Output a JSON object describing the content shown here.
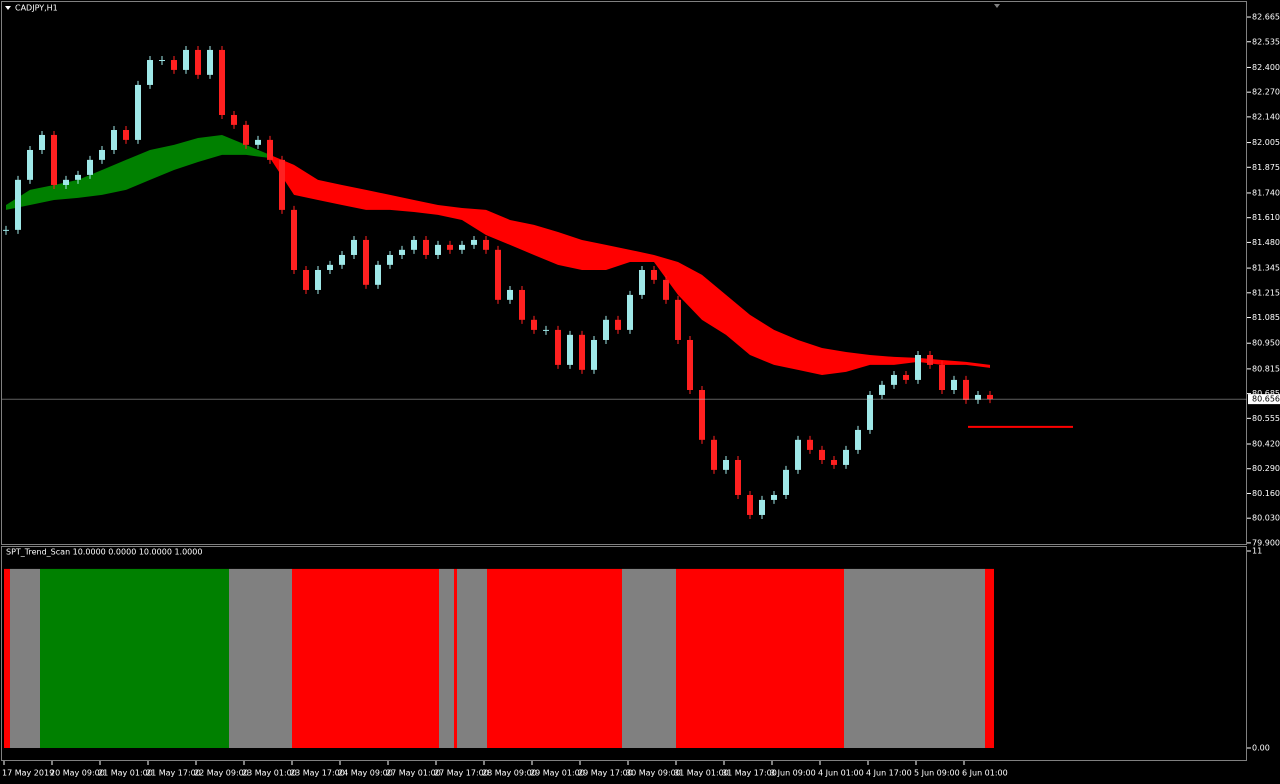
{
  "chart_data": {
    "type": "candlestick",
    "title": "CADJPY,H1",
    "ylim": [
      79.889,
      82.702
    ],
    "yticks": [
      {
        "value": 82.665,
        "label": "82.665"
      },
      82.535,
      {
        "value": 82.4,
        "label": "82.400"
      },
      {
        "value": 82.27,
        "label": "82.270"
      },
      {
        "value": 82.14,
        "label": "82.140"
      },
      82.005,
      81.875,
      {
        "value": 81.74,
        "label": "81.740"
      },
      {
        "value": 81.61,
        "label": "81.610"
      },
      {
        "value": 81.48,
        "label": "81.480"
      },
      81.345,
      81.215,
      81.085,
      {
        "value": 80.95,
        "label": "80.950"
      },
      80.815,
      80.685,
      80.555,
      {
        "value": 80.42,
        "label": "80.420"
      },
      {
        "value": 80.29,
        "label": "80.290"
      },
      {
        "value": 80.16,
        "label": "80.160"
      },
      {
        "value": 80.03,
        "label": "80.030"
      },
      {
        "value": 79.9,
        "label": "79.900"
      }
    ],
    "time_labels": [
      "17 May 2019",
      "20 May 09:00",
      "21 May 01:00",
      "21 May 17:00",
      "22 May 09:00",
      "23 May 01:00",
      "23 May 17:00",
      "24 May 09:00",
      "27 May 01:00",
      "27 May 17:00",
      "28 May 09:00",
      "29 May 01:00",
      "29 May 17:00",
      "30 May 09:00",
      "31 May 01:00",
      "31 May 17:00",
      "3 Jun 09:00",
      "4 Jun 01:00",
      "4 Jun 17:00",
      "5 Jun 09:00",
      "6 Jun 01:00"
    ],
    "up_color": "#9fe8e8",
    "down_color": "#ff2020",
    "closes": [
      81.546,
      81.809,
      81.966,
      82.045,
      81.782,
      81.809,
      81.835,
      81.914,
      81.966,
      82.071,
      82.019,
      82.308,
      82.439,
      82.439,
      82.387,
      82.492,
      82.361,
      82.492,
      82.15,
      82.098,
      81.993,
      82.019,
      81.914,
      81.651,
      81.335,
      81.23,
      81.335,
      81.362,
      81.414,
      81.493,
      81.257,
      81.362,
      81.414,
      81.441,
      81.493,
      81.414,
      81.467,
      81.441,
      81.467,
      81.493,
      81.441,
      81.178,
      81.23,
      81.073,
      81.02,
      81.02,
      80.836,
      80.994,
      80.81,
      80.967,
      81.073,
      81.02,
      81.204,
      81.335,
      81.283,
      81.178,
      80.967,
      80.704,
      80.442,
      80.284,
      80.336,
      80.152,
      80.047,
      80.126,
      80.152,
      80.284,
      80.442,
      80.389,
      80.336,
      80.31,
      80.389,
      80.494,
      80.678,
      80.731,
      80.783,
      80.757,
      80.888,
      80.836,
      80.704,
      80.757,
      80.652,
      80.678,
      80.656
    ],
    "band": {
      "upper": [
        81.677,
        81.756,
        81.782,
        81.809,
        81.861,
        81.914,
        81.966,
        81.993,
        82.029,
        82.045,
        81.993,
        81.94,
        81.888,
        81.809,
        81.782,
        81.756,
        81.73,
        81.703,
        81.677,
        81.661,
        81.651,
        81.598,
        81.572,
        81.535,
        81.493,
        81.467,
        81.441,
        81.414,
        81.377,
        81.309,
        81.204,
        81.099,
        81.02,
        80.967,
        80.925,
        80.904,
        80.888,
        80.878,
        80.873,
        80.862,
        80.852,
        80.836
      ],
      "lower": [
        81.651,
        81.677,
        81.703,
        81.714,
        81.73,
        81.756,
        81.809,
        81.861,
        81.903,
        81.94,
        81.94,
        81.924,
        81.73,
        81.703,
        81.677,
        81.651,
        81.651,
        81.64,
        81.625,
        81.598,
        81.519,
        81.467,
        81.414,
        81.362,
        81.335,
        81.335,
        81.377,
        81.377,
        81.204,
        81.073,
        80.994,
        80.888,
        80.836,
        80.81,
        80.783,
        80.799,
        80.836,
        80.836,
        80.852,
        80.836,
        80.836,
        80.82
      ],
      "colors": [
        "#008000",
        "#008000",
        "#008000",
        "#008000",
        "#008000",
        "#008000",
        "#008000",
        "#008000",
        "#008000",
        "#008000",
        "#008000",
        "#ff0000",
        "#ff0000",
        "#ff0000",
        "#ff0000",
        "#ff0000",
        "#ff0000",
        "#ff0000",
        "#ff0000",
        "#ff0000",
        "#ff0000",
        "#ff0000",
        "#ff0000",
        "#ff0000",
        "#ff0000",
        "#ff0000",
        "#ff0000",
        "#ff0000",
        "#ff0000",
        "#ff0000",
        "#ff0000",
        "#ff0000",
        "#ff0000",
        "#ff0000",
        "#ff0000",
        "#ff0000",
        "#ff0000",
        "#ff0000",
        "#ff0000",
        "#ff0000",
        "#ff0000",
        "#ff0000"
      ]
    },
    "current_price": {
      "value": 80.656,
      "label": "80.656"
    },
    "level_line": {
      "value": 80.51,
      "color": "#ff0000"
    },
    "indicator": {
      "title": "SPT_Trend_Scan 10.0000 0.0000 10.0000 1.0000",
      "ylim": [
        0,
        11
      ],
      "yticks": [
        11,
        {
          "value": 0,
          "label": "0.00"
        }
      ],
      "segments": [
        {
          "color": "#ff0000",
          "value": 10,
          "bars": 2
        },
        {
          "color": "#808080",
          "value": 10,
          "bars": 10
        },
        {
          "color": "#008000",
          "value": 10,
          "bars": 63
        },
        {
          "color": "#808080",
          "value": 10,
          "bars": 21
        },
        {
          "color": "#ff0000",
          "value": 10,
          "bars": 49
        },
        {
          "color": "#808080",
          "value": 10,
          "bars": 5
        },
        {
          "color": "#ff0000",
          "value": 10,
          "bars": 1
        },
        {
          "color": "#808080",
          "value": 10,
          "bars": 10
        },
        {
          "color": "#ff0000",
          "value": 10,
          "bars": 45
        },
        {
          "color": "#808080",
          "value": 10,
          "bars": 18
        },
        {
          "color": "#ff0000",
          "value": 10,
          "bars": 56
        },
        {
          "color": "#808080",
          "value": 10,
          "bars": 47
        },
        {
          "color": "#ff0000",
          "value": 10,
          "bars": 3
        }
      ]
    }
  }
}
